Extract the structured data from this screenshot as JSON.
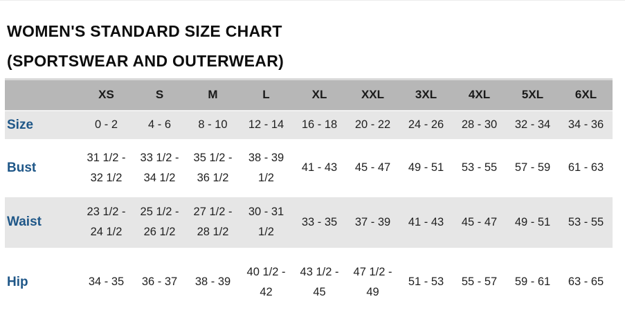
{
  "title": {
    "line1": "WOMEN'S STANDARD SIZE CHART",
    "line2": "(SPORTSWEAR AND OUTERWEAR)"
  },
  "table": {
    "columns": [
      "XS",
      "S",
      "M",
      "L",
      "XL",
      "XXL",
      "3XL",
      "4XL",
      "5XL",
      "6XL"
    ],
    "rows": [
      {
        "label": "Size",
        "values": [
          "0 - 2",
          "4 - 6",
          "8 - 10",
          "12 - 14",
          "16 - 18",
          "20 - 22",
          "24 - 26",
          "28 - 30",
          "32 - 34",
          "34 - 36"
        ]
      },
      {
        "label": "Bust",
        "values": [
          "31 1/2 -\n32 1/2",
          "33 1/2 -\n34 1/2",
          "35 1/2 -\n36 1/2",
          "38 - 39\n1/2",
          "41 - 43",
          "45 - 47",
          "49 - 51",
          "53 - 55",
          "57 - 59",
          "61 - 63"
        ]
      },
      {
        "label": "Waist",
        "values": [
          "23 1/2 -\n24 1/2",
          "25 1/2 -\n26 1/2",
          "27 1/2 -\n28 1/2",
          "30 - 31\n1/2",
          "33 - 35",
          "37 - 39",
          "41 - 43",
          "45 - 47",
          "49 - 51",
          "53 - 55"
        ]
      },
      {
        "label": "Hip",
        "values": [
          "34 - 35",
          "36 - 37",
          "38 - 39",
          "40 1/2 -\n42",
          "43 1/2 -\n45",
          "47 1/2 -\n49",
          "51 - 53",
          "55 - 57",
          "59 - 61",
          "63 - 65"
        ]
      }
    ]
  },
  "colors": {
    "header_bg": "#b7b7b7",
    "header_top": "#d9d9d9",
    "alt_row_bg": "#e6e6e6",
    "label_blue": "#1f5788",
    "text": "#1f1f1f"
  }
}
